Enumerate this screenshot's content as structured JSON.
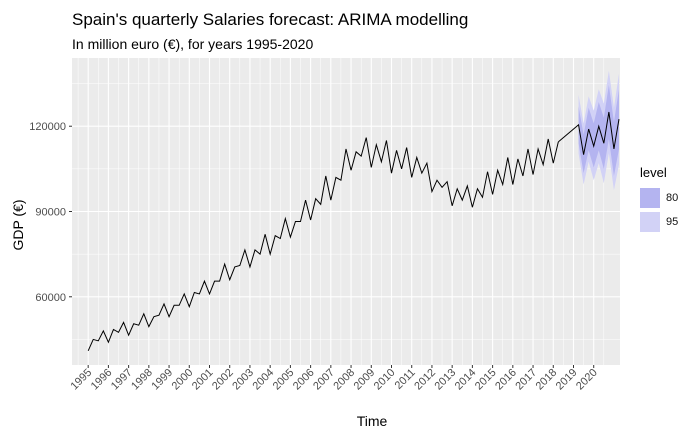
{
  "title": "Spain's quarterly Salaries forecast: ARIMA modelling",
  "subtitle": "In million euro (€), for years 1995-2020",
  "chart_data": {
    "type": "line",
    "xlabel": "Time",
    "ylabel": "GDP (€)",
    "xlim": [
      1994.2,
      2021.3
    ],
    "ylim": [
      36000,
      144000
    ],
    "yticks": [
      60000,
      90000,
      120000
    ],
    "ytick_labels": [
      "60000",
      "90000",
      "120000"
    ],
    "xticks": [
      "1995",
      "1996",
      "1997",
      "1998",
      "1999",
      "2000",
      "2001",
      "2002",
      "2003",
      "2004",
      "2005",
      "2006",
      "2007",
      "2008",
      "2009",
      "2010",
      "2011",
      "2012",
      "2013",
      "2014",
      "2015",
      "2016",
      "2017",
      "2018",
      "2019",
      "2020"
    ],
    "grid": true,
    "background_color": "#EBEBEB",
    "line_color": "#000000",
    "band80_color": "#B4B4F0",
    "band95_color": "#D2D2F6",
    "legend": {
      "title": "level",
      "position": "right",
      "entries": [
        {
          "label": "80",
          "color": "#B4B4F0"
        },
        {
          "label": "95",
          "color": "#D2D2F6"
        }
      ]
    },
    "series": [
      {
        "start": 1995.0,
        "frequency": 4,
        "values": [
          41000,
          45000,
          44500,
          48000,
          44000,
          48500,
          47500,
          51000,
          46500,
          50500,
          50000,
          54000,
          49500,
          53000,
          53500,
          57500,
          53000,
          57000,
          57000,
          61000,
          56500,
          61500,
          61000,
          65500,
          61000,
          65500,
          65500,
          71500,
          66000,
          70500,
          71000,
          76500,
          70500,
          76500,
          75000,
          82000,
          75000,
          81500,
          80500,
          87500,
          81000,
          86500,
          86500,
          94000,
          87000,
          94500,
          92500,
          102500,
          94000,
          102000,
          101000,
          112000,
          104500,
          111000,
          109500,
          116000,
          105500,
          113500,
          107500,
          115000,
          103500,
          111500,
          105000,
          112500,
          102000,
          109000,
          103500,
          107000,
          97000,
          101000,
          98500,
          100500,
          92000,
          98000,
          94000,
          99000,
          91500,
          98000,
          95000,
          104000,
          96000,
          104500,
          99500,
          109000,
          99500,
          108500,
          102500,
          112000,
          103000,
          112000,
          106500,
          115500,
          107000,
          114500
        ]
      }
    ],
    "forecast": {
      "start": 2019.25,
      "frequency": 4,
      "point": [
        120500,
        110000,
        119000,
        113000,
        120000,
        114000,
        125000,
        112000,
        122500
      ],
      "lo80": [
        114000,
        103500,
        111500,
        105500,
        111500,
        105000,
        115500,
        102500,
        112000
      ],
      "hi80": [
        127000,
        117000,
        126500,
        121000,
        128500,
        123000,
        134500,
        121500,
        133000
      ],
      "lo95": [
        110500,
        99500,
        107500,
        101000,
        107000,
        100000,
        110500,
        97500,
        106500
      ],
      "hi95": [
        131000,
        121000,
        130500,
        125500,
        133000,
        128000,
        139500,
        126500,
        138500
      ]
    }
  }
}
